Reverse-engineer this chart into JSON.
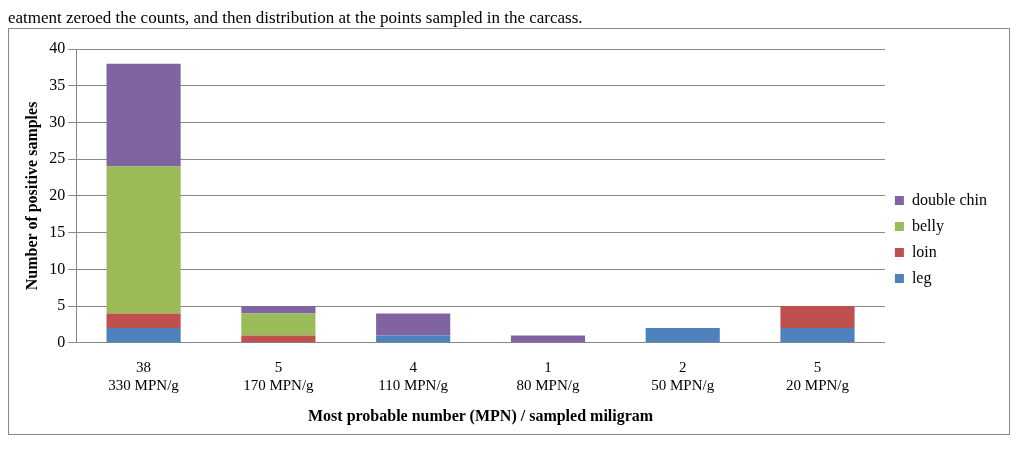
{
  "chart_data": {
    "type": "bar",
    "stacked": true,
    "xlabel": "Most probable number (MPN) / sampled miligram",
    "ylabel": "Number of positive samples",
    "annotations": [
      "eatment zeroed the counts, and then distribution at the points sampled in the carcass."
    ],
    "categories": [
      "330 MPN/g",
      "170 MPN/g",
      "110 MPN/g",
      "80 MPN/g",
      "50 MPN/g",
      "20 MPN/g"
    ],
    "totals": [
      "38",
      "5",
      "4",
      "1",
      "2",
      "5"
    ],
    "series": [
      {
        "name": "leg",
        "color": "#4f81bd",
        "values": [
          2,
          0,
          1,
          0,
          2,
          2
        ]
      },
      {
        "name": "loin",
        "color": "#c0504d",
        "values": [
          2,
          1,
          0,
          0,
          0,
          3
        ]
      },
      {
        "name": "belly",
        "color": "#9bbb59",
        "values": [
          20,
          3,
          0,
          0,
          0,
          0
        ]
      },
      {
        "name": "double chin",
        "color": "#8064a2",
        "values": [
          14,
          1,
          3,
          1,
          0,
          0
        ]
      }
    ],
    "ylim": [
      0,
      40
    ],
    "yticks": [
      0,
      5,
      10,
      15,
      20,
      25,
      30,
      35,
      40
    ],
    "grid": "y",
    "legend": "right"
  }
}
